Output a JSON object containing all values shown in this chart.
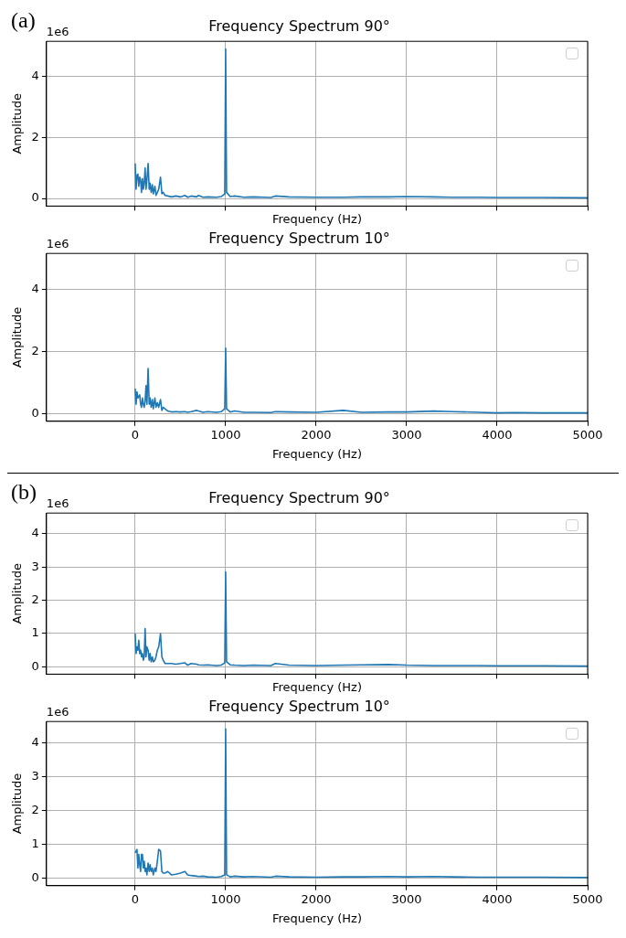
{
  "chart_data": [
    {
      "type": "line",
      "title": "Frequency Spectrum 90°",
      "xlabel": "Frequency (Hz)",
      "ylabel": "Amplitude",
      "annotations": [
        "(a)",
        "1e6"
      ],
      "xlim": [
        -980,
        5000
      ],
      "xticks": [
        0,
        1000,
        2000,
        3000,
        4000,
        5000
      ],
      "ylim": [
        -0.25,
        5.15
      ],
      "yticks": [
        0,
        2,
        4
      ],
      "grid": true,
      "tick_labels": "y",
      "x": [
        0,
        10,
        20,
        30,
        40,
        50,
        60,
        70,
        80,
        90,
        100,
        110,
        120,
        130,
        143,
        155,
        165,
        177,
        190,
        200,
        218,
        230,
        245,
        260,
        280,
        295,
        310,
        330,
        360,
        400,
        450,
        500,
        550,
        580,
        620,
        680,
        700,
        750,
        800,
        900,
        950,
        990,
        1000,
        1010,
        1050,
        1100,
        1200,
        1300,
        1500,
        1550,
        1700,
        2000,
        2300,
        2500,
        2800,
        3000,
        3300,
        3500,
        3800,
        4000,
        4200,
        4500,
        5000
      ],
      "series": [
        {
          "color": "#1f77b4",
          "values": [
            1.15,
            0.3,
            0.75,
            0.8,
            0.4,
            0.7,
            0.6,
            0.2,
            0.65,
            0.3,
            0.5,
            1.0,
            0.3,
            0.6,
            1.15,
            0.3,
            0.5,
            0.2,
            0.45,
            0.15,
            0.4,
            0.1,
            0.2,
            0.3,
            0.7,
            0.15,
            0.2,
            0.1,
            0.08,
            0.05,
            0.08,
            0.05,
            0.1,
            0.04,
            0.08,
            0.05,
            0.1,
            0.04,
            0.05,
            0.04,
            0.06,
            0.15,
            4.9,
            0.2,
            0.06,
            0.08,
            0.04,
            0.05,
            0.03,
            0.08,
            0.05,
            0.04,
            0.04,
            0.05,
            0.05,
            0.06,
            0.05,
            0.04,
            0.04,
            0.03,
            0.03,
            0.03,
            0.02
          ]
        }
      ]
    },
    {
      "type": "line",
      "title": "Frequency Spectrum 10°",
      "xlabel": "Frequency (Hz)",
      "ylabel": "Amplitude",
      "annotations": [
        "1e6"
      ],
      "xlim": [
        -980,
        5000
      ],
      "xticks": [
        0,
        1000,
        2000,
        3000,
        4000,
        5000
      ],
      "ylim": [
        -0.25,
        5.15
      ],
      "yticks": [
        0,
        2,
        4
      ],
      "grid": true,
      "x": [
        0,
        10,
        20,
        30,
        40,
        50,
        60,
        70,
        80,
        90,
        100,
        110,
        120,
        130,
        143,
        155,
        165,
        177,
        190,
        200,
        218,
        230,
        245,
        260,
        280,
        295,
        310,
        330,
        360,
        400,
        450,
        500,
        550,
        580,
        620,
        680,
        700,
        750,
        800,
        900,
        950,
        990,
        1000,
        1010,
        1050,
        1100,
        1200,
        1300,
        1500,
        1550,
        1700,
        2000,
        2300,
        2500,
        2800,
        3000,
        3300,
        3500,
        3800,
        4000,
        4200,
        4500,
        5000
      ],
      "series": [
        {
          "color": "#1f77b4",
          "values": [
            0.8,
            0.3,
            0.7,
            0.5,
            0.55,
            0.6,
            0.3,
            0.2,
            0.5,
            0.3,
            0.2,
            0.4,
            0.9,
            0.3,
            1.45,
            0.3,
            0.5,
            0.2,
            0.45,
            0.15,
            0.5,
            0.2,
            0.35,
            0.2,
            0.45,
            0.1,
            0.2,
            0.15,
            0.08,
            0.05,
            0.06,
            0.05,
            0.06,
            0.04,
            0.06,
            0.1,
            0.08,
            0.04,
            0.06,
            0.04,
            0.06,
            0.15,
            2.1,
            0.15,
            0.05,
            0.08,
            0.04,
            0.04,
            0.03,
            0.06,
            0.05,
            0.04,
            0.1,
            0.04,
            0.05,
            0.05,
            0.08,
            0.06,
            0.04,
            0.02,
            0.03,
            0.02,
            0.02
          ]
        }
      ]
    },
    {
      "type": "line",
      "title": "Frequency Spectrum 90°",
      "xlabel": "Frequency (Hz)",
      "ylabel": "Amplitude",
      "annotations": [
        "(b)",
        "1e6"
      ],
      "xlim": [
        -980,
        5000
      ],
      "xticks": [
        0,
        1000,
        2000,
        3000,
        4000,
        5000
      ],
      "ylim": [
        -0.22,
        4.62
      ],
      "yticks": [
        0,
        1,
        2,
        3,
        4
      ],
      "grid": true,
      "tick_labels": "y",
      "x": [
        0,
        10,
        20,
        30,
        40,
        50,
        60,
        70,
        80,
        90,
        100,
        110,
        120,
        130,
        143,
        155,
        165,
        177,
        190,
        200,
        218,
        230,
        245,
        260,
        280,
        295,
        310,
        330,
        360,
        400,
        450,
        500,
        550,
        580,
        620,
        680,
        700,
        750,
        800,
        900,
        950,
        990,
        1000,
        1010,
        1050,
        1100,
        1200,
        1300,
        1500,
        1550,
        1700,
        2000,
        2300,
        2500,
        2800,
        3000,
        3300,
        3500,
        3800,
        4000,
        4200,
        4500,
        5000
      ],
      "series": [
        {
          "color": "#1f77b4",
          "values": [
            1.0,
            0.4,
            0.6,
            0.5,
            0.8,
            0.4,
            0.5,
            0.3,
            0.4,
            0.2,
            0.3,
            1.15,
            0.3,
            0.6,
            0.5,
            0.2,
            0.4,
            0.15,
            0.3,
            0.15,
            0.2,
            0.3,
            0.5,
            0.6,
            1.0,
            0.3,
            0.2,
            0.1,
            0.1,
            0.1,
            0.08,
            0.1,
            0.12,
            0.05,
            0.1,
            0.08,
            0.06,
            0.05,
            0.06,
            0.04,
            0.05,
            0.12,
            2.85,
            0.15,
            0.06,
            0.05,
            0.04,
            0.05,
            0.04,
            0.1,
            0.05,
            0.04,
            0.05,
            0.06,
            0.07,
            0.05,
            0.04,
            0.04,
            0.04,
            0.03,
            0.03,
            0.03,
            0.02
          ]
        }
      ]
    },
    {
      "type": "line",
      "title": "Frequency Spectrum 10°",
      "xlabel": "Frequency (Hz)",
      "ylabel": "Amplitude",
      "annotations": [
        "1e6"
      ],
      "xlim": [
        -980,
        5000
      ],
      "xticks": [
        0,
        1000,
        2000,
        3000,
        4000,
        5000
      ],
      "ylim": [
        -0.22,
        4.62
      ],
      "yticks": [
        0,
        1,
        2,
        3,
        4
      ],
      "grid": true,
      "x": [
        0,
        10,
        20,
        30,
        40,
        50,
        60,
        70,
        80,
        90,
        100,
        110,
        120,
        130,
        143,
        155,
        165,
        177,
        190,
        200,
        218,
        230,
        245,
        260,
        280,
        295,
        310,
        330,
        360,
        400,
        450,
        500,
        550,
        580,
        620,
        680,
        700,
        750,
        800,
        900,
        950,
        990,
        1000,
        1010,
        1050,
        1100,
        1200,
        1300,
        1500,
        1550,
        1700,
        2000,
        2300,
        2500,
        2800,
        3000,
        3300,
        3500,
        3800,
        4000,
        4200,
        4500,
        5000
      ],
      "series": [
        {
          "color": "#1f77b4",
          "values": [
            0.75,
            0.8,
            0.85,
            0.3,
            0.7,
            0.4,
            0.2,
            0.7,
            0.7,
            0.3,
            0.5,
            0.2,
            0.3,
            0.1,
            0.45,
            0.2,
            0.4,
            0.2,
            0.3,
            0.1,
            0.3,
            0.2,
            0.5,
            0.85,
            0.8,
            0.2,
            0.15,
            0.15,
            0.2,
            0.1,
            0.12,
            0.15,
            0.2,
            0.1,
            0.08,
            0.06,
            0.05,
            0.06,
            0.04,
            0.03,
            0.05,
            0.1,
            4.4,
            0.1,
            0.04,
            0.06,
            0.04,
            0.05,
            0.03,
            0.06,
            0.04,
            0.03,
            0.04,
            0.04,
            0.05,
            0.04,
            0.05,
            0.04,
            0.03,
            0.03,
            0.03,
            0.03,
            0.02
          ]
        }
      ]
    }
  ]
}
